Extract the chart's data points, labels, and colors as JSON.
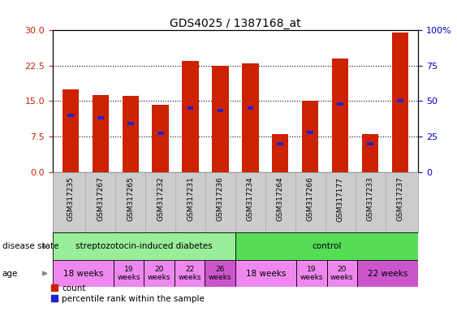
{
  "title": "GDS4025 / 1387168_at",
  "samples": [
    "GSM317235",
    "GSM317267",
    "GSM317265",
    "GSM317232",
    "GSM317231",
    "GSM317236",
    "GSM317234",
    "GSM317264",
    "GSM317266",
    "GSM317177",
    "GSM317233",
    "GSM317237"
  ],
  "count_values": [
    17.5,
    16.2,
    16.0,
    14.2,
    23.5,
    22.5,
    23.0,
    8.0,
    15.0,
    24.0,
    8.0,
    29.5
  ],
  "percentile_values": [
    40,
    38,
    34,
    27,
    45,
    43,
    45,
    20,
    28,
    48,
    20,
    50
  ],
  "ylim_left": [
    0,
    30
  ],
  "yticks_left": [
    0,
    7.5,
    15,
    22.5,
    30
  ],
  "ylim_right": [
    0,
    100
  ],
  "yticks_right": [
    0,
    25,
    50,
    75,
    100
  ],
  "ytick_labels_right": [
    "0",
    "25",
    "50",
    "75",
    "100%"
  ],
  "bar_color": "#cc2200",
  "blue_color": "#2222cc",
  "bar_width": 0.55,
  "disease_state_groups": [
    {
      "label": "streptozotocin-induced diabetes",
      "start": 0,
      "end": 6,
      "color": "#99ee99"
    },
    {
      "label": "control",
      "start": 6,
      "end": 12,
      "color": "#55dd55"
    }
  ],
  "age_groups": [
    {
      "label": "18 weeks",
      "start": 0,
      "end": 2,
      "color": "#ee88ee",
      "small": false
    },
    {
      "label": "19\nweeks",
      "start": 2,
      "end": 3,
      "color": "#ee88ee",
      "small": true
    },
    {
      "label": "20\nweeks",
      "start": 3,
      "end": 4,
      "color": "#ee88ee",
      "small": true
    },
    {
      "label": "22\nweeks",
      "start": 4,
      "end": 5,
      "color": "#ee88ee",
      "small": true
    },
    {
      "label": "26\nweeks",
      "start": 5,
      "end": 6,
      "color": "#cc55cc",
      "small": true
    },
    {
      "label": "18 weeks",
      "start": 6,
      "end": 8,
      "color": "#ee88ee",
      "small": false
    },
    {
      "label": "19\nweeks",
      "start": 8,
      "end": 9,
      "color": "#ee88ee",
      "small": true
    },
    {
      "label": "20\nweeks",
      "start": 9,
      "end": 10,
      "color": "#ee88ee",
      "small": true
    },
    {
      "label": "22 weeks",
      "start": 10,
      "end": 12,
      "color": "#cc55cc",
      "small": false
    }
  ],
  "sample_bg_color": "#cccccc",
  "ylabel_left_color": "#cc2200",
  "ylabel_right_color": "#0000cc",
  "grid_color": "#000000"
}
